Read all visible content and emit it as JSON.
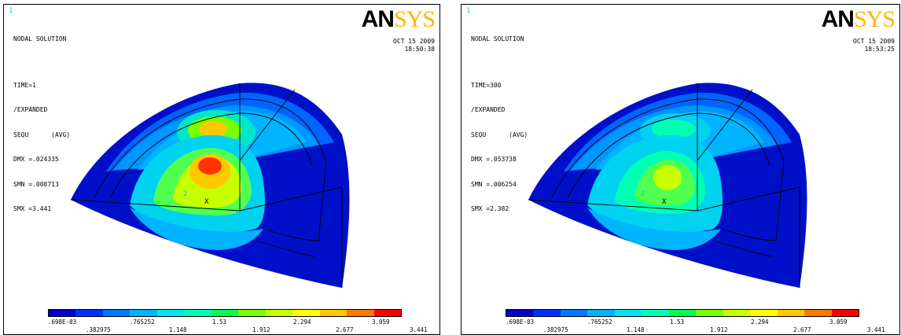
{
  "left": {
    "window_number": "1",
    "title": "NODAL SOLUTION",
    "time": "TIME=1",
    "expanded": "/EXPANDED",
    "sequ": "SEQU      (AVG)",
    "dmx": "DMX =.024335",
    "smn": "SMN =.008713",
    "smx": "SMX =3.441",
    "date": "OCT 15 2009",
    "clock": "18:50:38",
    "logo_an": "AN",
    "logo_sys": "SYS",
    "node_label": "2",
    "axis_label": "X"
  },
  "right": {
    "window_number": "1",
    "title": "NODAL SOLUTION",
    "time": "TIME=300",
    "expanded": "/EXPANDED",
    "sequ": "SEQU      (AVG)",
    "dmx": "DMX =.053738",
    "smn": "SMN =.006254",
    "smx": "SMX =2.382",
    "date": "OCT 15 2009",
    "clock": "18:53:25",
    "logo_an": "AN",
    "logo_sys": "SYS",
    "node_label": "2",
    "axis_label": "X"
  },
  "legend": {
    "colors": [
      "#0000c8",
      "#0030ff",
      "#0078ff",
      "#00b4ff",
      "#00e6f0",
      "#00ffb4",
      "#00ff50",
      "#78ff00",
      "#c8ff00",
      "#ffff00",
      "#ffc800",
      "#ff7800",
      "#ff0000"
    ],
    "top_labels": [
      ".698E-03",
      ".765252",
      "1.53",
      "2.294",
      "3.059"
    ],
    "bottom_labels": [
      ".382975",
      "1.148",
      "1.912",
      "2.677",
      "3.441"
    ]
  }
}
